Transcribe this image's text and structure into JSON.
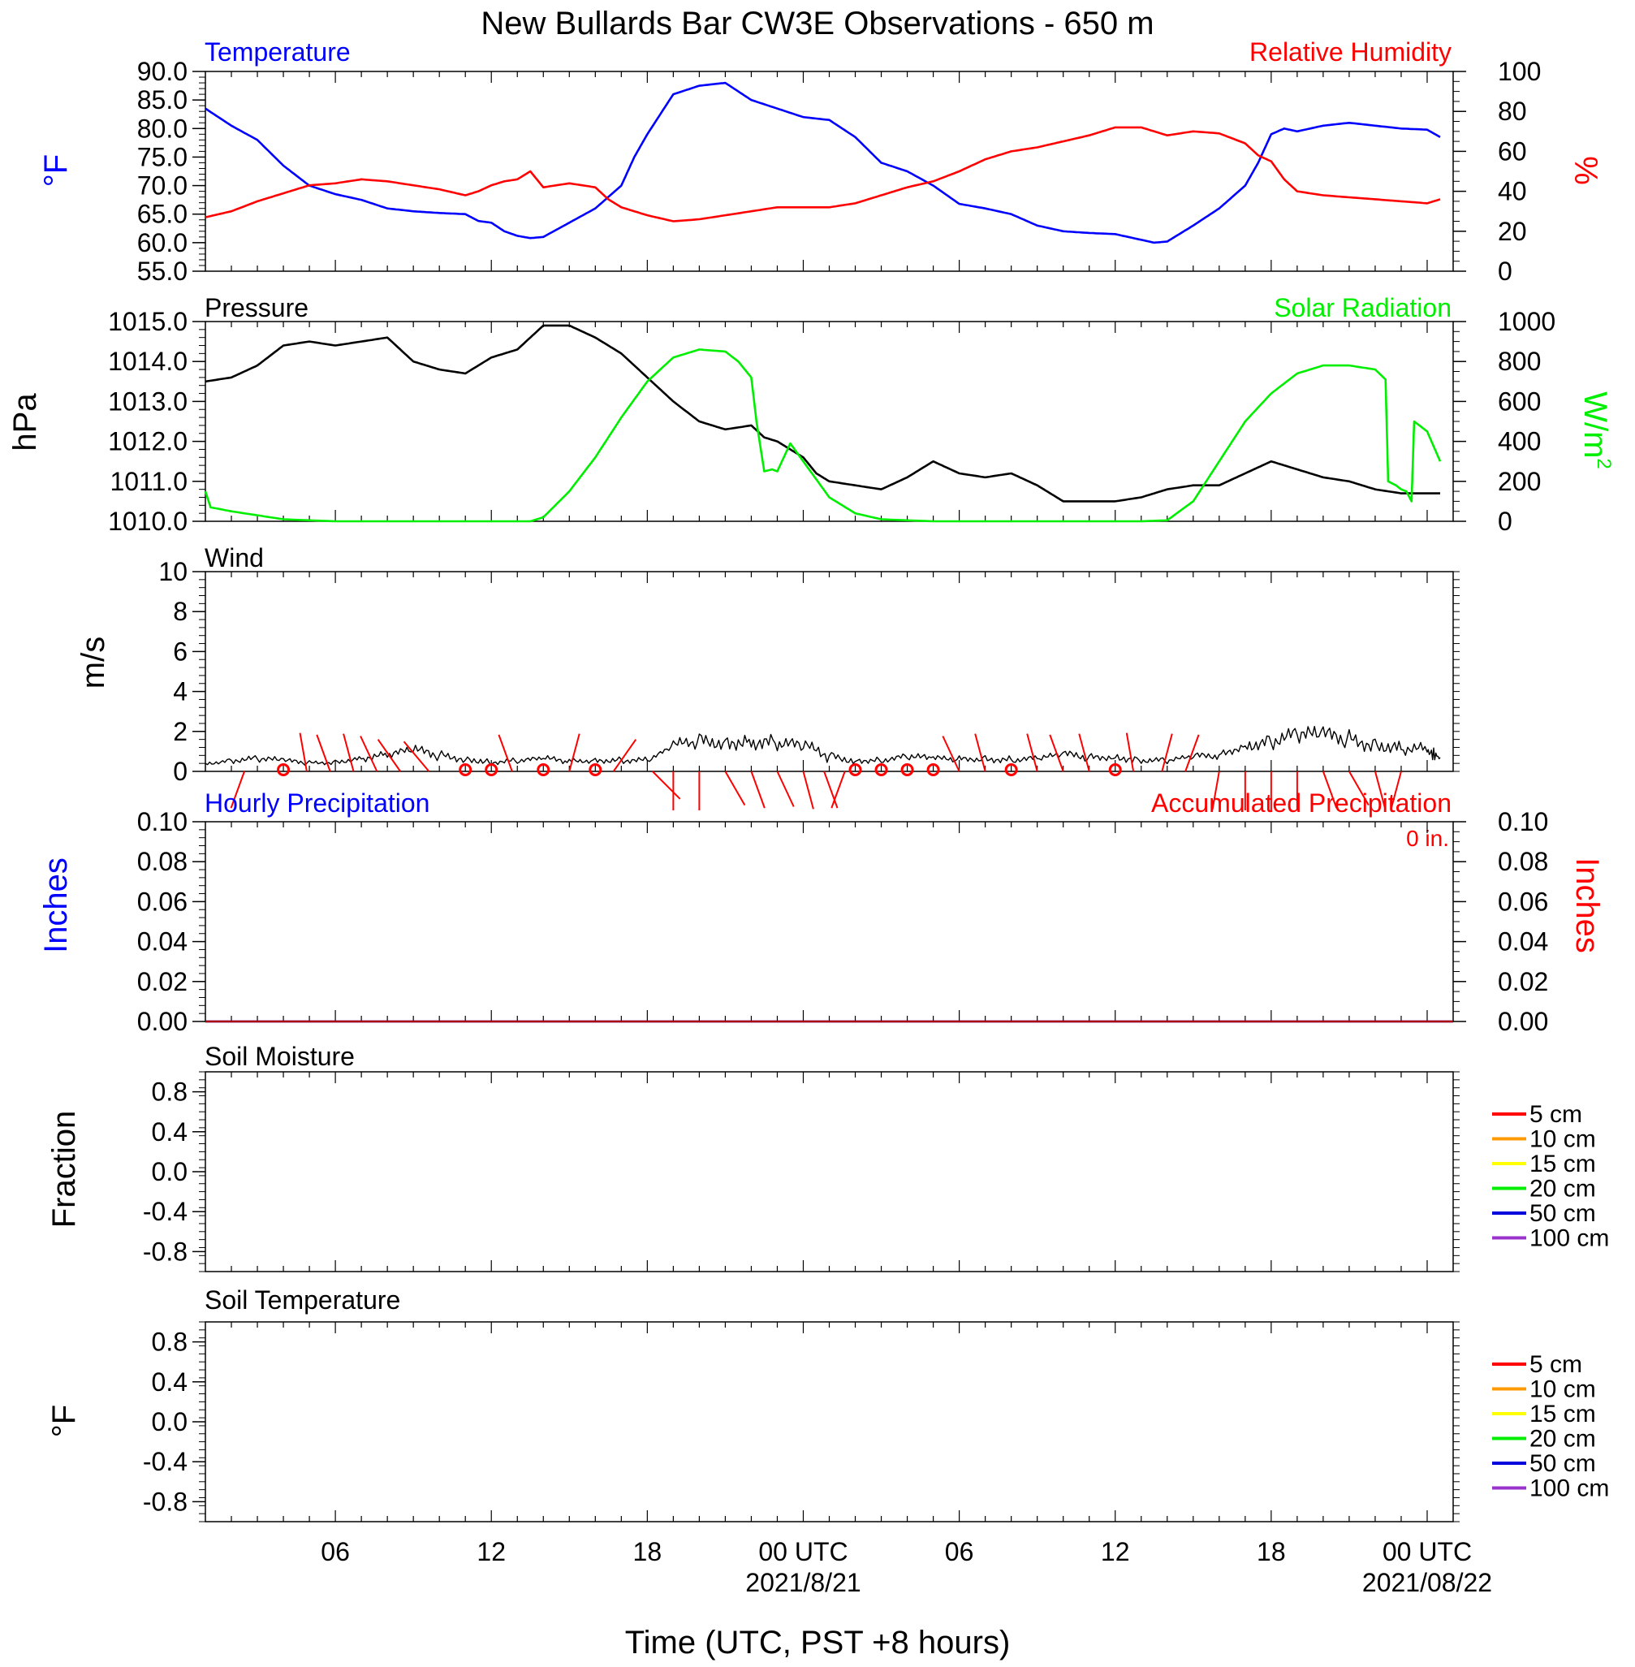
{
  "title": "New Bullards Bar CW3E Observations - 650 m",
  "x_axis": {
    "label": "Time (UTC, PST +8 hours)",
    "range_hours": [
      0,
      48
    ],
    "major_ticks": [
      {
        "hour": 5,
        "label": "06",
        "date": ""
      },
      {
        "hour": 11,
        "label": "12",
        "date": ""
      },
      {
        "hour": 17,
        "label": "18",
        "date": ""
      },
      {
        "hour": 23,
        "label": "00 UTC",
        "date": "2021/8/21"
      },
      {
        "hour": 29,
        "label": "06",
        "date": ""
      },
      {
        "hour": 35,
        "label": "12",
        "date": ""
      },
      {
        "hour": 41,
        "label": "18",
        "date": ""
      },
      {
        "hour": 47,
        "label": "00 UTC",
        "date": "2021/08/22"
      }
    ]
  },
  "colors": {
    "blue": "#0000ff",
    "red": "#ff0000",
    "green": "#00ee00",
    "black": "#000000",
    "darkred": "#aa0000"
  },
  "panels": {
    "temperature": {
      "left_title": "Temperature",
      "right_title": "Relative Humidity",
      "left_unit": "°F",
      "right_unit": "%",
      "left_ticks": [
        "90.0",
        "85.0",
        "80.0",
        "75.0",
        "70.0",
        "65.0",
        "60.0",
        "55.0"
      ],
      "right_ticks": [
        "100",
        "80",
        "60",
        "40",
        "20",
        "0"
      ]
    },
    "pressure": {
      "left_title": "Pressure",
      "right_title": "Solar Radiation",
      "left_unit": "hPa",
      "right_unit": "W/m",
      "right_unit_sup": "2",
      "left_ticks": [
        "1015.0",
        "1014.0",
        "1013.0",
        "1012.0",
        "1011.0",
        "1010.0"
      ],
      "right_ticks": [
        "1000",
        "800",
        "600",
        "400",
        "200",
        "0"
      ]
    },
    "wind": {
      "left_title": "Wind",
      "left_unit": "m/s",
      "left_ticks": [
        "10",
        "8",
        "6",
        "4",
        "2",
        "0"
      ]
    },
    "precipitation": {
      "left_title": "Hourly Precipitation",
      "right_title": "Accumulated Precipitation",
      "accum_text": "0 in.",
      "left_unit": "Inches",
      "right_unit": "Inches",
      "left_ticks": [
        "0.10",
        "0.08",
        "0.06",
        "0.04",
        "0.02",
        "0.00"
      ],
      "right_ticks": [
        "0.10",
        "0.08",
        "0.06",
        "0.04",
        "0.02",
        "0.00"
      ]
    },
    "soil_moisture": {
      "left_title": "Soil Moisture",
      "left_unit": "Fraction",
      "left_ticks": [
        "0.8",
        "0.4",
        "0.0",
        "-0.4",
        "-0.8"
      ]
    },
    "soil_temperature": {
      "left_title": "Soil Temperature",
      "left_unit": "°F",
      "left_ticks": [
        "0.8",
        "0.4",
        "0.0",
        "-0.4",
        "-0.8"
      ]
    }
  },
  "soil_legend": [
    {
      "label": "5 cm",
      "color": "#ff0000"
    },
    {
      "label": "10 cm",
      "color": "#ff9900"
    },
    {
      "label": "15 cm",
      "color": "#ffff00"
    },
    {
      "label": "20 cm",
      "color": "#00ee00"
    },
    {
      "label": "50 cm",
      "color": "#0000dd"
    },
    {
      "label": "100 cm",
      "color": "#9933cc"
    }
  ],
  "chart_data": [
    {
      "type": "line",
      "panel": "temperature",
      "title": "Temperature",
      "ylabel": "°F",
      "ylim": [
        55,
        90
      ],
      "series": [
        {
          "name": "Temperature",
          "color": "#0000ff",
          "axis": "left",
          "x": [
            0,
            1,
            2,
            3,
            4,
            5,
            6,
            7,
            8,
            9,
            10,
            10.5,
            11,
            11.5,
            12,
            12.5,
            13,
            14,
            15,
            16,
            16.5,
            17,
            18,
            19,
            20,
            21,
            22,
            23,
            24,
            25,
            26,
            27,
            28,
            29,
            30,
            31,
            32,
            33,
            34,
            35,
            36,
            36.5,
            37,
            38,
            39,
            40,
            40.5,
            41,
            41.5,
            42,
            43,
            44,
            45,
            46,
            47,
            47.5
          ],
          "y": [
            83.5,
            80.5,
            78,
            73.5,
            70,
            68.5,
            67.5,
            66,
            65.5,
            65.2,
            65,
            63.8,
            63.5,
            62,
            61.2,
            60.8,
            61,
            63.5,
            66,
            70,
            75,
            79,
            86,
            87.5,
            88,
            85,
            83.5,
            82,
            81.5,
            78.5,
            74,
            72.5,
            70,
            66.8,
            66,
            65,
            63,
            62,
            61.7,
            61.5,
            60.5,
            60,
            60.2,
            63,
            66,
            70,
            74,
            79,
            80,
            79.5,
            80.5,
            81,
            80.5,
            80,
            79.8,
            78.5
          ]
        },
        {
          "name": "Relative Humidity",
          "color": "#ff0000",
          "axis": "right",
          "x": [
            0,
            1,
            2,
            3,
            4,
            5,
            6,
            7,
            8,
            9,
            10,
            10.5,
            11,
            11.5,
            12,
            12.5,
            13,
            14,
            15,
            15.5,
            16,
            17,
            18,
            19,
            20,
            21,
            22,
            23,
            24,
            25,
            26,
            27,
            28,
            29,
            30,
            31,
            32,
            33,
            34,
            35,
            36,
            37,
            38,
            39,
            40,
            40.5,
            41,
            41.5,
            42,
            43,
            44,
            45,
            46,
            47,
            47.5
          ],
          "y": [
            27,
            30,
            35,
            39,
            43,
            44,
            46,
            45,
            43,
            41,
            38,
            40,
            43,
            45,
            46,
            50,
            42,
            44,
            42,
            36,
            32,
            28,
            25,
            26,
            28,
            30,
            32,
            32,
            32,
            34,
            38,
            42,
            45,
            50,
            56,
            60,
            62,
            65,
            68,
            72,
            72,
            68,
            70,
            69,
            64,
            58,
            55,
            46,
            40,
            38,
            37,
            36,
            35,
            34,
            36
          ]
        }
      ]
    },
    {
      "type": "line",
      "panel": "pressure",
      "title": "Pressure",
      "ylabel": "hPa",
      "ylim": [
        1010,
        1015
      ],
      "series": [
        {
          "name": "Pressure",
          "color": "#000000",
          "axis": "left",
          "x": [
            0,
            1,
            2,
            3,
            4,
            5,
            6,
            7,
            8,
            9,
            10,
            11,
            12,
            13,
            14,
            15,
            16,
            17,
            18,
            19,
            20,
            21,
            21.5,
            22,
            22.5,
            23,
            23.5,
            24,
            25,
            26,
            27,
            28,
            29,
            30,
            31,
            32,
            33,
            34,
            35,
            36,
            37,
            38,
            39,
            40,
            41,
            42,
            43,
            44,
            45,
            46,
            47,
            47.5
          ],
          "y": [
            1013.5,
            1013.6,
            1013.9,
            1014.4,
            1014.5,
            1014.4,
            1014.5,
            1014.6,
            1014,
            1013.8,
            1013.7,
            1014.1,
            1014.3,
            1014.9,
            1014.9,
            1014.6,
            1014.2,
            1013.6,
            1013,
            1012.5,
            1012.3,
            1012.4,
            1012.1,
            1012.0,
            1011.8,
            1011.6,
            1011.2,
            1011.0,
            1010.9,
            1010.8,
            1011.1,
            1011.5,
            1011.2,
            1011.1,
            1011.2,
            1010.9,
            1010.5,
            1010.5,
            1010.5,
            1010.6,
            1010.8,
            1010.9,
            1010.9,
            1011.2,
            1011.5,
            1011.3,
            1011.1,
            1011.0,
            1010.8,
            1010.7,
            1010.7,
            1010.7
          ]
        },
        {
          "name": "Solar Radiation",
          "color": "#00ee00",
          "axis": "right",
          "x": [
            0,
            0.2,
            1,
            2,
            3,
            5,
            10,
            12,
            12.5,
            13,
            14,
            15,
            16,
            17,
            18,
            19,
            19.5,
            20,
            20.5,
            21,
            21.2,
            21.5,
            21.8,
            22,
            22.5,
            23,
            24,
            25,
            26,
            28,
            30,
            35,
            36,
            37,
            38,
            39,
            40,
            41,
            42,
            43,
            44,
            45,
            45.4,
            45.5,
            45.8,
            46,
            46.2,
            46.4,
            46.5,
            47,
            47.5
          ],
          "y": [
            150,
            70,
            50,
            30,
            10,
            0,
            0,
            0,
            0,
            20,
            150,
            320,
            520,
            700,
            820,
            860,
            855,
            850,
            800,
            720,
            500,
            250,
            260,
            250,
            390,
            300,
            120,
            40,
            10,
            0,
            0,
            0,
            0,
            5,
            100,
            300,
            500,
            640,
            740,
            780,
            780,
            760,
            710,
            200,
            180,
            160,
            150,
            100,
            500,
            450,
            300
          ]
        }
      ]
    },
    {
      "type": "line",
      "panel": "wind",
      "title": "Wind",
      "ylabel": "m/s",
      "ylim": [
        0,
        10
      ],
      "series": [
        {
          "name": "Wind",
          "color": "#000000",
          "x": [
            0,
            1,
            2,
            3,
            4,
            5,
            6,
            7,
            8,
            9,
            10,
            11,
            12,
            13,
            14,
            15,
            16,
            17,
            18,
            19,
            20,
            21,
            22,
            23,
            24,
            25,
            26,
            27,
            28,
            29,
            30,
            31,
            32,
            33,
            34,
            35,
            36,
            37,
            38,
            39,
            40,
            41,
            42,
            43,
            44,
            45,
            46,
            47,
            47.5
          ],
          "y": [
            0.4,
            0.6,
            0.6,
            0.5,
            0.4,
            0.5,
            0.7,
            0.8,
            1.0,
            0.8,
            0.7,
            0.5,
            0.5,
            0.6,
            0.5,
            0.6,
            0.6,
            0.5,
            1.2,
            1.5,
            1.6,
            1.6,
            1.3,
            1.2,
            0.8,
            0.6,
            0.6,
            0.7,
            0.6,
            0.6,
            0.7,
            0.6,
            0.6,
            0.8,
            0.7,
            0.8,
            0.6,
            0.5,
            0.7,
            0.8,
            1.4,
            1.6,
            1.7,
            1.7,
            1.6,
            1.5,
            1.2,
            1.0,
            0.7
          ]
        }
      ]
    },
    {
      "type": "line",
      "panel": "precipitation",
      "title": "Hourly Precipitation",
      "ylabel": "Inches",
      "ylim": [
        0,
        0.1
      ],
      "series": [
        {
          "name": "Hourly Precipitation",
          "color": "#0000ff",
          "x": [
            0,
            48
          ],
          "y": [
            0,
            0
          ]
        },
        {
          "name": "Accumulated Precipitation",
          "color": "#aa0000",
          "x": [
            0,
            48
          ],
          "y": [
            0,
            0
          ]
        }
      ]
    },
    {
      "type": "line",
      "panel": "soil_moisture",
      "title": "Soil Moisture",
      "ylabel": "Fraction",
      "ylim": [
        -1,
        1
      ],
      "series": []
    },
    {
      "type": "line",
      "panel": "soil_temperature",
      "title": "Soil Temperature",
      "ylabel": "°F",
      "ylim": [
        -1,
        1
      ],
      "series": []
    }
  ],
  "wind_barbs": [
    {
      "hour": 1.5,
      "dir": 200
    },
    {
      "hour": 3.0,
      "dir": 0,
      "calm": true
    },
    {
      "hour": 3.9,
      "dir": 350
    },
    {
      "hour": 4.8,
      "dir": 340
    },
    {
      "hour": 5.7,
      "dir": 345
    },
    {
      "hour": 6.6,
      "dir": 335
    },
    {
      "hour": 7.5,
      "dir": 325
    },
    {
      "hour": 8.6,
      "dir": 320
    },
    {
      "hour": 10.0,
      "dir": 0,
      "calm": true
    },
    {
      "hour": 11.0,
      "dir": 0,
      "calm": true
    },
    {
      "hour": 11.8,
      "dir": 340
    },
    {
      "hour": 13.0,
      "dir": 0,
      "calm": true
    },
    {
      "hour": 14.0,
      "dir": 15
    },
    {
      "hour": 15.0,
      "dir": 0,
      "calm": true
    },
    {
      "hour": 15.7,
      "dir": 35
    },
    {
      "hour": 17.2,
      "dir": 135
    },
    {
      "hour": 18.0,
      "dir": 180
    },
    {
      "hour": 19.0,
      "dir": 180
    },
    {
      "hour": 20.0,
      "dir": 150
    },
    {
      "hour": 21.0,
      "dir": 160
    },
    {
      "hour": 22.0,
      "dir": 155
    },
    {
      "hour": 23.0,
      "dir": 165
    },
    {
      "hour": 23.8,
      "dir": 160
    },
    {
      "hour": 24.6,
      "dir": 200
    },
    {
      "hour": 25.0,
      "dir": 0,
      "calm": true
    },
    {
      "hour": 26.0,
      "dir": 0,
      "calm": true
    },
    {
      "hour": 27.0,
      "dir": 0,
      "calm": true
    },
    {
      "hour": 28.0,
      "dir": 0,
      "calm": true
    },
    {
      "hour": 29.0,
      "dir": 335
    },
    {
      "hour": 30.0,
      "dir": 345
    },
    {
      "hour": 31.0,
      "dir": 0,
      "calm": true
    },
    {
      "hour": 32.0,
      "dir": 345
    },
    {
      "hour": 33.0,
      "dir": 340
    },
    {
      "hour": 34.0,
      "dir": 345
    },
    {
      "hour": 35.0,
      "dir": 0,
      "calm": true
    },
    {
      "hour": 35.7,
      "dir": 350
    },
    {
      "hour": 36.8,
      "dir": 15
    },
    {
      "hour": 37.7,
      "dir": 20
    },
    {
      "hour": 39.0,
      "dir": 190
    },
    {
      "hour": 40.0,
      "dir": 180
    },
    {
      "hour": 41.0,
      "dir": 180
    },
    {
      "hour": 42.0,
      "dir": 180
    },
    {
      "hour": 43.0,
      "dir": 160
    },
    {
      "hour": 44.0,
      "dir": 150
    },
    {
      "hour": 45.0,
      "dir": 165
    },
    {
      "hour": 46.0,
      "dir": 195
    }
  ]
}
